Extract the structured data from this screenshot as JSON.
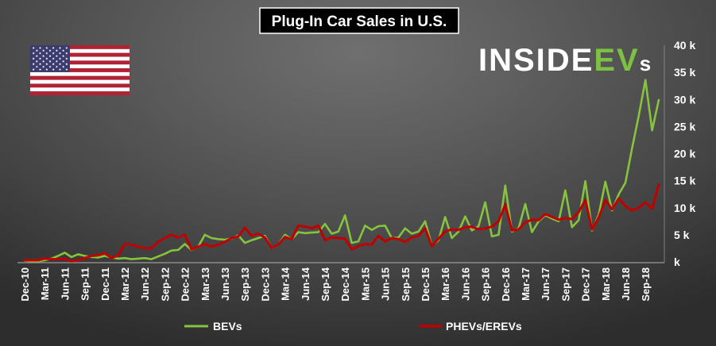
{
  "chart_data": {
    "type": "line",
    "title": "Plug-In Car Sales in U.S.",
    "xlabel": "",
    "ylabel": "",
    "x_tick_labels": [
      "Dec-10",
      "Mar-11",
      "Jun-11",
      "Sep-11",
      "Dec-11",
      "Mar-12",
      "Jun-12",
      "Sep-12",
      "Dec-12",
      "Mar-13",
      "Jun-13",
      "Sep-13",
      "Dec-13",
      "Mar-14",
      "Jun-14",
      "Sep-14",
      "Dec-14",
      "Mar-15",
      "Jun-15",
      "Sep-15",
      "Dec-15",
      "Mar-16",
      "Jun-16",
      "Sep-16",
      "Dec-16",
      "Mar-17",
      "Jun-17",
      "Sep-17",
      "Dec-17",
      "Mar-18",
      "Jun-18",
      "Sep-18"
    ],
    "tick_interval_months": 3,
    "y_ticks": [
      0,
      5000,
      10000,
      15000,
      20000,
      25000,
      30000,
      35000,
      40000
    ],
    "y_tick_labels": [
      "k",
      "5 k",
      "10 k",
      "15 k",
      "20 k",
      "25 k",
      "30 k",
      "35 k",
      "40 k"
    ],
    "ylim": [
      0,
      40000
    ],
    "grid": false,
    "legend_position": "bottom",
    "series": [
      {
        "name": "BEVs",
        "color": "#86c43f",
        "values": [
          200,
          100,
          100,
          300,
          600,
          1100,
          1700,
          900,
          1400,
          1100,
          900,
          800,
          1100,
          800,
          600,
          700,
          500,
          600,
          700,
          500,
          1000,
          1500,
          2100,
          2200,
          3300,
          2200,
          2800,
          5000,
          4400,
          4200,
          4100,
          4300,
          4900,
          3500,
          4000,
          4400,
          4800,
          2600,
          3200,
          5000,
          4200,
          5500,
          5300,
          5400,
          5500,
          7000,
          5200,
          5600,
          8600,
          3500,
          3800,
          6700,
          5900,
          6600,
          6700,
          4400,
          4500,
          6200,
          5200,
          5600,
          7500,
          3000,
          4000,
          8300,
          4400,
          5600,
          8400,
          5800,
          6600,
          11000,
          4700,
          5000,
          14100,
          5600,
          6200,
          10700,
          5500,
          7500,
          8600,
          8000,
          7500,
          13200,
          6400,
          7700,
          14900,
          5800,
          8700,
          14800,
          9500,
          12500,
          14600,
          21000,
          27000,
          33600,
          24300,
          29900
        ]
      },
      {
        "name": "PHEVs/EREVs",
        "color": "#c00000",
        "values": [
          300,
          300,
          300,
          600,
          500,
          500,
          600,
          100,
          300,
          700,
          1100,
          1200,
          1600,
          700,
          1200,
          3300,
          3200,
          2800,
          2500,
          2500,
          3700,
          4400,
          5000,
          4500,
          5000,
          2300,
          2800,
          3300,
          2800,
          3200,
          3700,
          4400,
          4700,
          6300,
          4800,
          5200,
          4500,
          2600,
          3200,
          4600,
          4200,
          6700,
          6500,
          6200,
          6700,
          4000,
          4500,
          4400,
          4300,
          2300,
          2900,
          3300,
          3200,
          4800,
          3800,
          4400,
          4200,
          3700,
          4500,
          4800,
          6200,
          2900,
          4300,
          5600,
          6000,
          5900,
          6400,
          6500,
          6000,
          6200,
          6500,
          7500,
          10600,
          5800,
          6000,
          7300,
          7800,
          7700,
          8800,
          8300,
          7800,
          8100,
          7900,
          9200,
          11400,
          6000,
          8200,
          11400,
          9700,
          11700,
          10300,
          9500,
          10000,
          11000,
          9800,
          14300
        ]
      }
    ]
  },
  "logo": {
    "text_white": "INSIDE",
    "text_green": "EV",
    "text_suffix": "s",
    "white_color": "#ffffff",
    "green_color": "#7dc142"
  },
  "flag": {
    "red": "#b22234",
    "white": "#ffffff",
    "blue": "#3c3b6e"
  },
  "colors": {
    "title_box_fill": "#000000",
    "title_box_border": "#ffffff",
    "axis_line": "#9a9a9a"
  }
}
